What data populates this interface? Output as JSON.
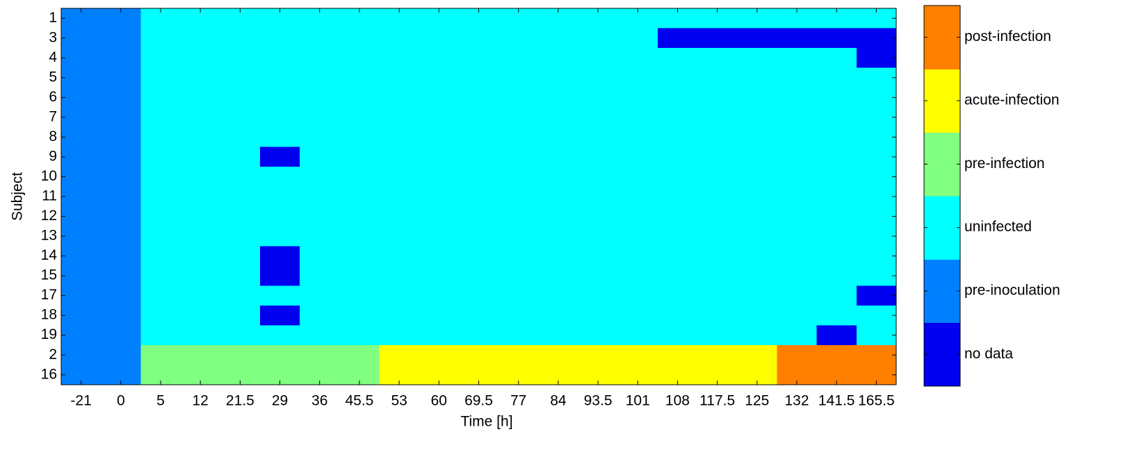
{
  "chart_data": {
    "type": "heatmap",
    "x_label": "Time [h]",
    "y_label": "Subject",
    "categories": [
      "-21",
      "0",
      "5",
      "12",
      "21.5",
      "29",
      "36",
      "45.5",
      "53",
      "60",
      "69.5",
      "77",
      "84",
      "93.5",
      "101",
      "108",
      "117.5",
      "125",
      "132",
      "141.5",
      "165.5"
    ],
    "rows": [
      "1",
      "3",
      "4",
      "5",
      "6",
      "7",
      "8",
      "9",
      "10",
      "11",
      "12",
      "13",
      "14",
      "15",
      "17",
      "18",
      "19",
      "2",
      "16"
    ],
    "values": [
      [
        1,
        1,
        2,
        2,
        2,
        2,
        2,
        2,
        2,
        2,
        2,
        2,
        2,
        2,
        2,
        2,
        2,
        2,
        2,
        2,
        2
      ],
      [
        1,
        1,
        2,
        2,
        2,
        2,
        2,
        2,
        2,
        2,
        2,
        2,
        2,
        2,
        2,
        0,
        0,
        0,
        0,
        0,
        0
      ],
      [
        1,
        1,
        2,
        2,
        2,
        2,
        2,
        2,
        2,
        2,
        2,
        2,
        2,
        2,
        2,
        2,
        2,
        2,
        2,
        2,
        0
      ],
      [
        1,
        1,
        2,
        2,
        2,
        2,
        2,
        2,
        2,
        2,
        2,
        2,
        2,
        2,
        2,
        2,
        2,
        2,
        2,
        2,
        2
      ],
      [
        1,
        1,
        2,
        2,
        2,
        2,
        2,
        2,
        2,
        2,
        2,
        2,
        2,
        2,
        2,
        2,
        2,
        2,
        2,
        2,
        2
      ],
      [
        1,
        1,
        2,
        2,
        2,
        2,
        2,
        2,
        2,
        2,
        2,
        2,
        2,
        2,
        2,
        2,
        2,
        2,
        2,
        2,
        2
      ],
      [
        1,
        1,
        2,
        2,
        2,
        2,
        2,
        2,
        2,
        2,
        2,
        2,
        2,
        2,
        2,
        2,
        2,
        2,
        2,
        2,
        2
      ],
      [
        1,
        1,
        2,
        2,
        2,
        0,
        2,
        2,
        2,
        2,
        2,
        2,
        2,
        2,
        2,
        2,
        2,
        2,
        2,
        2,
        2
      ],
      [
        1,
        1,
        2,
        2,
        2,
        2,
        2,
        2,
        2,
        2,
        2,
        2,
        2,
        2,
        2,
        2,
        2,
        2,
        2,
        2,
        2
      ],
      [
        1,
        1,
        2,
        2,
        2,
        2,
        2,
        2,
        2,
        2,
        2,
        2,
        2,
        2,
        2,
        2,
        2,
        2,
        2,
        2,
        2
      ],
      [
        1,
        1,
        2,
        2,
        2,
        2,
        2,
        2,
        2,
        2,
        2,
        2,
        2,
        2,
        2,
        2,
        2,
        2,
        2,
        2,
        2
      ],
      [
        1,
        1,
        2,
        2,
        2,
        2,
        2,
        2,
        2,
        2,
        2,
        2,
        2,
        2,
        2,
        2,
        2,
        2,
        2,
        2,
        2
      ],
      [
        1,
        1,
        2,
        2,
        2,
        0,
        2,
        2,
        2,
        2,
        2,
        2,
        2,
        2,
        2,
        2,
        2,
        2,
        2,
        2,
        2
      ],
      [
        1,
        1,
        2,
        2,
        2,
        0,
        2,
        2,
        2,
        2,
        2,
        2,
        2,
        2,
        2,
        2,
        2,
        2,
        2,
        2,
        2
      ],
      [
        1,
        1,
        2,
        2,
        2,
        2,
        2,
        2,
        2,
        2,
        2,
        2,
        2,
        2,
        2,
        2,
        2,
        2,
        2,
        2,
        0
      ],
      [
        1,
        1,
        2,
        2,
        2,
        0,
        2,
        2,
        2,
        2,
        2,
        2,
        2,
        2,
        2,
        2,
        2,
        2,
        2,
        2,
        2
      ],
      [
        1,
        1,
        2,
        2,
        2,
        2,
        2,
        2,
        2,
        2,
        2,
        2,
        2,
        2,
        2,
        2,
        2,
        2,
        2,
        0,
        2
      ],
      [
        1,
        1,
        3,
        3,
        3,
        3,
        3,
        3,
        4,
        4,
        4,
        4,
        4,
        4,
        4,
        4,
        4,
        4,
        5,
        5,
        5
      ],
      [
        1,
        1,
        3,
        3,
        3,
        3,
        3,
        3,
        4,
        4,
        4,
        4,
        4,
        4,
        4,
        4,
        4,
        4,
        5,
        5,
        5
      ]
    ],
    "colorbar": {
      "labels": [
        "no data",
        "pre-inoculation",
        "uninfected",
        "pre-infection",
        "acute-infection",
        "post-infection"
      ],
      "colors": [
        "#0000f0",
        "#0080ff",
        "#00ffff",
        "#80ff80",
        "#ffff00",
        "#ff8000"
      ]
    }
  }
}
